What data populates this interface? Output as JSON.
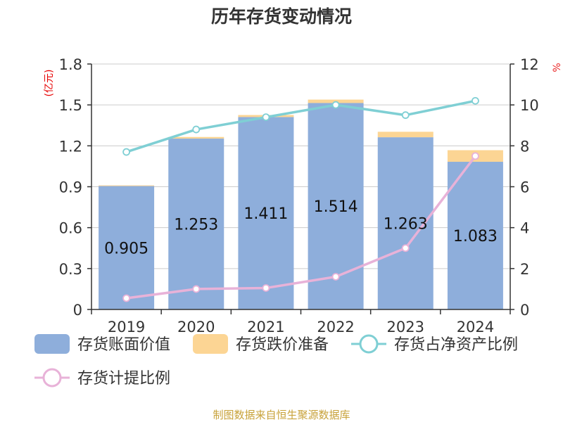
{
  "title": "历年存货变动情况",
  "source": "制图数据来自恒生聚源数据库",
  "colors": {
    "book_value": "#8eaedb",
    "impairment": "#fcd594",
    "net_asset_ratio": "#7fcfd4",
    "provision_ratio": "#e8b2d8",
    "axis": "#333333",
    "grid": "#cccccc",
    "unit": "#e60000",
    "source": "#c8a23a"
  },
  "chart_data": {
    "type": "bar",
    "title": "历年存货变动情况",
    "categories": [
      "2019",
      "2020",
      "2021",
      "2022",
      "2023",
      "2024"
    ],
    "y_left": {
      "unit": "(亿元)",
      "ylim": [
        0,
        1.8
      ],
      "ticks": [
        "0",
        "0.3",
        "0.6",
        "0.9",
        "1.2",
        "1.5",
        "1.8"
      ]
    },
    "y_right": {
      "unit": "%",
      "ylim": [
        0,
        12
      ],
      "ticks": [
        "0",
        "2",
        "4",
        "6",
        "8",
        "10",
        "12"
      ]
    },
    "grid": true,
    "legend_position": "bottom",
    "series": [
      {
        "name": "存货账面价值",
        "type": "bar",
        "axis": "left",
        "stack": "inv",
        "values": [
          0.905,
          1.253,
          1.411,
          1.514,
          1.263,
          1.083
        ],
        "labels": [
          "0.905",
          "1.253",
          "1.411",
          "1.514",
          "1.263",
          "1.083"
        ]
      },
      {
        "name": "存货跌价准备",
        "type": "bar",
        "axis": "left",
        "stack": "inv",
        "values": [
          0.005,
          0.012,
          0.015,
          0.025,
          0.04,
          0.085
        ]
      },
      {
        "name": "存货占净资产比例",
        "type": "line",
        "axis": "right",
        "values": [
          7.7,
          8.8,
          9.4,
          10.0,
          9.5,
          10.2
        ]
      },
      {
        "name": "存货计提比例",
        "type": "line",
        "axis": "right",
        "values": [
          0.55,
          1.0,
          1.05,
          1.6,
          3.0,
          7.5
        ]
      }
    ]
  }
}
